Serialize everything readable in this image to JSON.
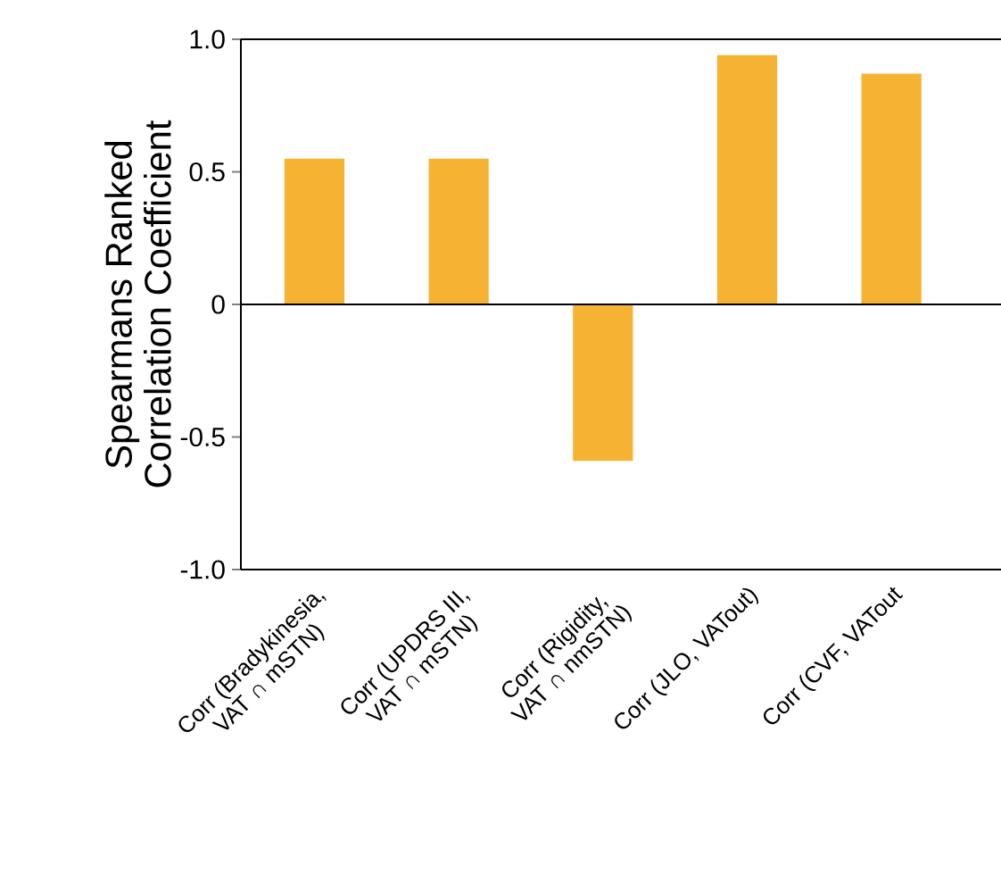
{
  "chart_data": {
    "type": "bar",
    "ylabel": "Spearmans Ranked\nCorrelation Coefficient",
    "categories": [
      "Corr (Bradykinesia,\nVAT ∩ mSTN)",
      "Corr (UPDRS III,\nVAT ∩ mSTN)",
      "Corr (Rigidity,\nVAT ∩ nmSTN)",
      "Corr (JLO, VATout)",
      "Corr (CVF, VATout"
    ],
    "values": [
      0.55,
      0.55,
      -0.59,
      0.94,
      0.87
    ],
    "color": "#f6b333",
    "ylim": [
      -1.0,
      1.0
    ],
    "yticks": [
      {
        "value": -1.0,
        "label": "-1.0"
      },
      {
        "value": -0.5,
        "label": "-0.5"
      },
      0,
      {
        "value": 0.5,
        "label": "0.5"
      },
      {
        "value": 1.0,
        "label": "1.0"
      }
    ],
    "ref_lines": [
      {
        "axis": "y",
        "value": 0,
        "color": "#000000"
      }
    ]
  }
}
